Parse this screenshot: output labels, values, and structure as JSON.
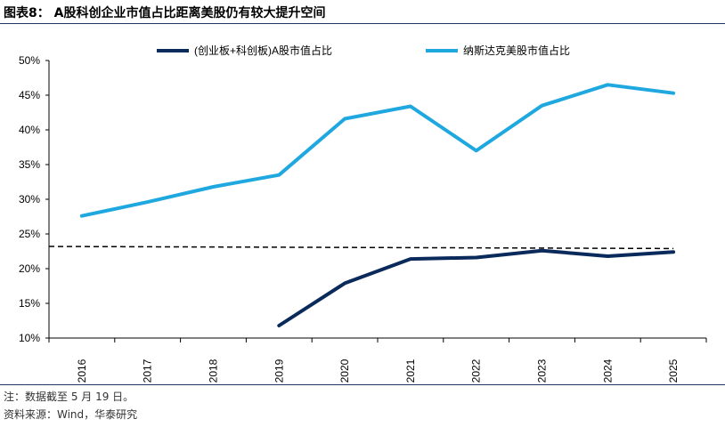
{
  "header": {
    "title": "图表8： A股科创企业市值占比距离美股仍有较大提升空间"
  },
  "footer": {
    "note": "注：数据截至 5 月 19 日。",
    "source": "资料来源：Wind，华泰研究"
  },
  "chart_data": {
    "type": "line",
    "x": [
      "2016",
      "2017",
      "2018",
      "2019",
      "2020",
      "2021",
      "2022",
      "2023",
      "2024",
      "2025"
    ],
    "ylim": [
      0.1,
      0.5
    ],
    "yticks": [
      0.1,
      0.15,
      0.2,
      0.25,
      0.3,
      0.35,
      0.4,
      0.45,
      0.5
    ],
    "ytick_labels": [
      "10%",
      "15%",
      "20%",
      "25%",
      "30%",
      "35%",
      "40%",
      "45%",
      "50%"
    ],
    "legend_position": "top",
    "grid": false,
    "reference_line": {
      "value_start": 0.232,
      "value_end": 0.229,
      "style": "dashed",
      "color": "#000000"
    },
    "series": [
      {
        "name": "(创业板+科创板)A股市值占比",
        "color": "#0b2a5c",
        "values": [
          null,
          null,
          null,
          0.118,
          0.179,
          0.214,
          0.216,
          0.226,
          0.218,
          0.224
        ]
      },
      {
        "name": "纳斯达克美股市值占比",
        "color": "#1fa8e0",
        "values": [
          0.276,
          0.296,
          0.318,
          0.335,
          0.416,
          0.434,
          0.37,
          0.435,
          0.465,
          0.453
        ]
      }
    ]
  }
}
